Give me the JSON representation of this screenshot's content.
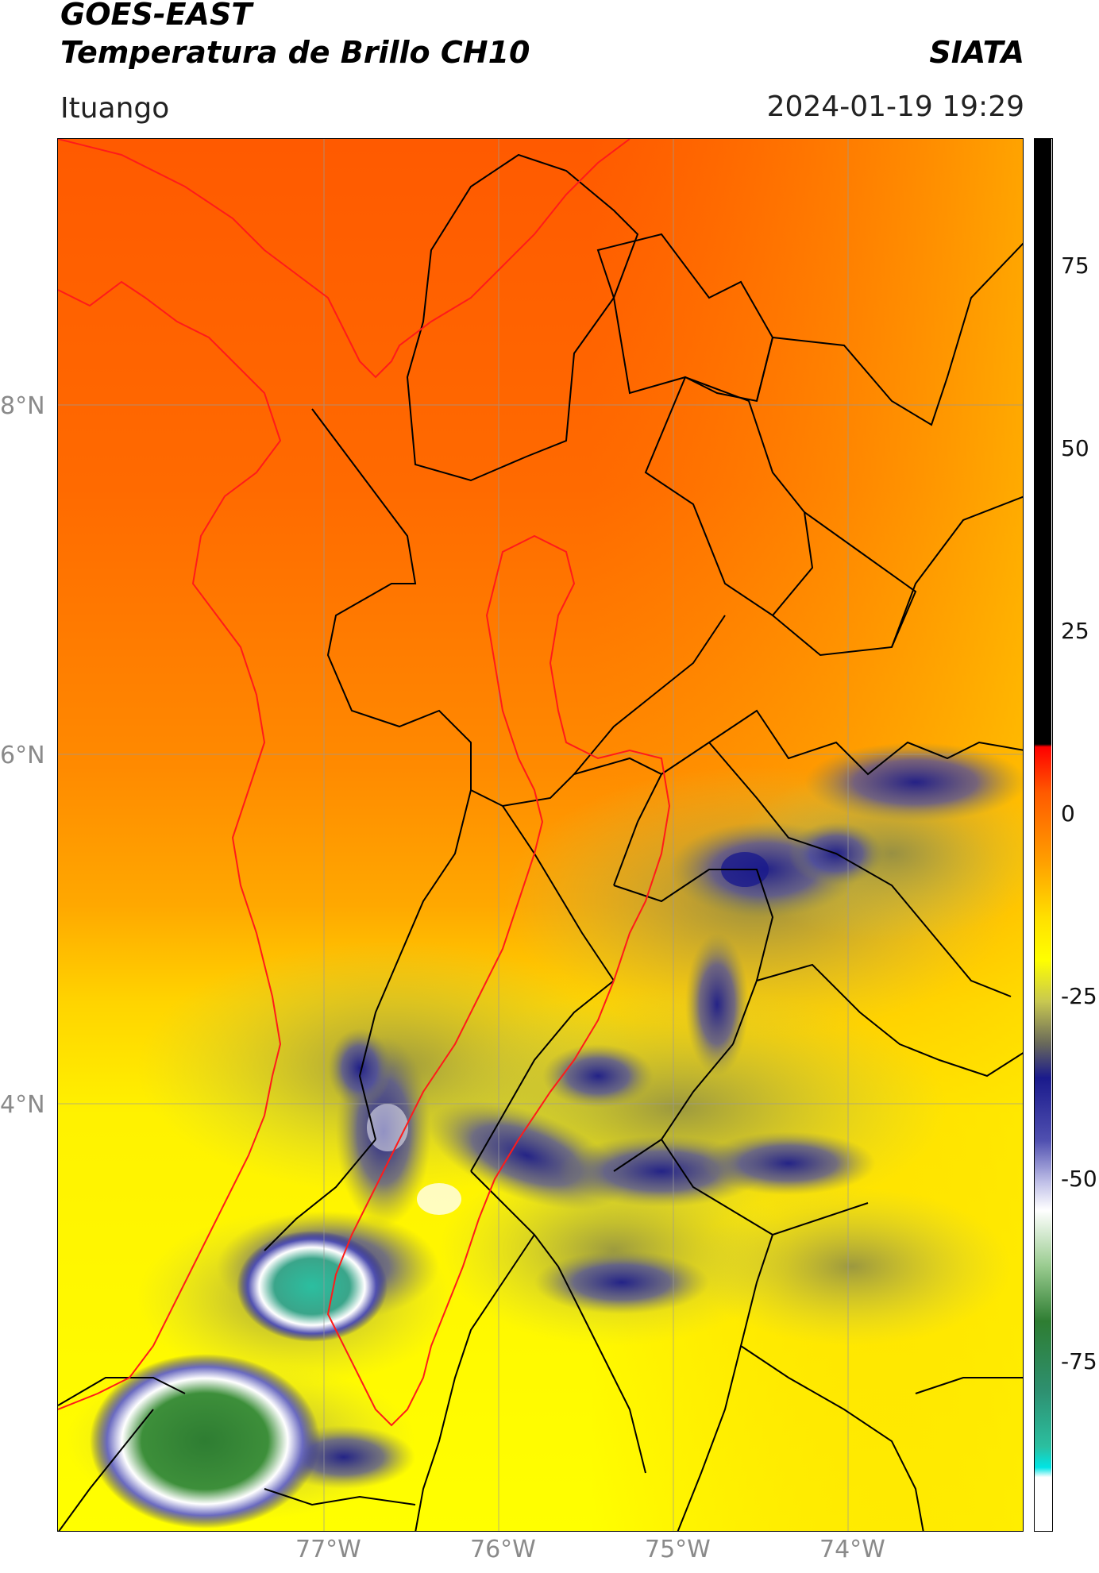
{
  "header": {
    "title_line1": "GOES-EAST",
    "title_line2": "Temperatura de Brillo CH10",
    "org": "SIATA",
    "location": "Ituango",
    "datetime": "2024-01-19 19:29"
  },
  "map": {
    "lat_labels": [
      "8°N",
      "6°N",
      "4°N"
    ],
    "lon_labels": [
      "77°W",
      "76°W",
      "75°W",
      "74°W"
    ]
  },
  "colorbar": {
    "ticks": [
      "75",
      "50",
      "25",
      "0",
      "-25",
      "-50",
      "-75"
    ],
    "colors": {
      "black": "#000000",
      "red": "#ff0000",
      "orange": "#ff7a00",
      "yellow": "#ffff00",
      "olive": "#8a8a4a",
      "navy": "#1a1a8c",
      "white": "#ffffff",
      "green": "#2e7d32",
      "teal": "#2bbfa0",
      "cyan": "#00e5e5"
    }
  }
}
